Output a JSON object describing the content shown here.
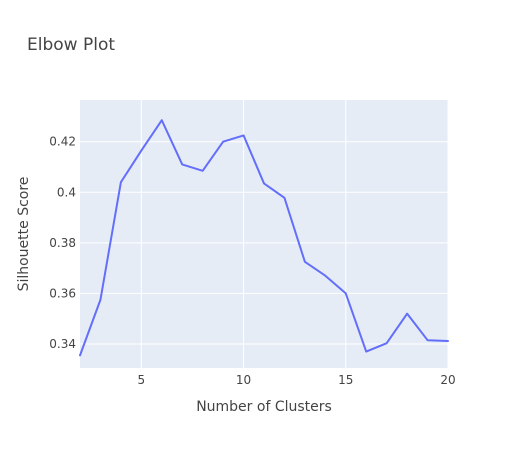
{
  "chart_data": {
    "type": "line",
    "title": "Elbow Plot",
    "xlabel": "Number of Clusters",
    "ylabel": "Silhouette Score",
    "xlim": [
      2,
      20
    ],
    "ylim": [
      0.3305,
      0.4365
    ],
    "x_ticks": [
      5,
      10,
      15,
      20
    ],
    "x_tick_labels": [
      "5",
      "10",
      "15",
      "20"
    ],
    "y_ticks": [
      0.34,
      0.36,
      0.38,
      0.4,
      0.42
    ],
    "y_tick_labels": [
      "0.34",
      "0.36",
      "0.38",
      "0.4",
      "0.42"
    ],
    "grid": true,
    "series": [
      {
        "x": [
          2,
          3,
          4,
          5,
          6,
          7,
          8,
          9,
          10,
          11,
          12,
          13,
          14,
          15,
          16,
          17,
          18,
          19,
          20
        ],
        "values": [
          0.3355,
          0.3575,
          0.404,
          0.4165,
          0.4285,
          0.411,
          0.4085,
          0.42,
          0.4225,
          0.4035,
          0.3978,
          0.3725,
          0.367,
          0.36,
          0.337,
          0.3403,
          0.352,
          0.3415,
          0.3412
        ]
      }
    ]
  },
  "colors": {
    "plot_bg": "#E5ECF6",
    "grid": "#FFFFFF",
    "line": "#636EFA",
    "text": "#444444",
    "title": "#444444"
  }
}
